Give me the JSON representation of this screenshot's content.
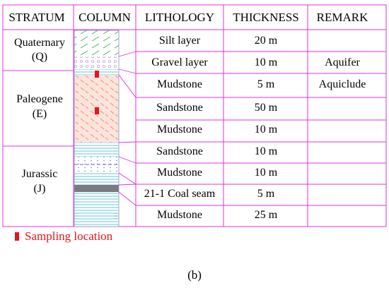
{
  "headers": [
    "STRATUM",
    "COLUMN",
    "LITHOLOGY",
    "THICKNESS",
    "REMARK"
  ],
  "strata": [
    {
      "name": "Quaternary",
      "code": "(Q)"
    },
    {
      "name": "Paleogene",
      "code": "(E)"
    },
    {
      "name": "Jurassic",
      "code": "(J)"
    }
  ],
  "layers": [
    {
      "lithology": "Silt layer",
      "thickness": "20 m",
      "remark": "",
      "pattern": "silt"
    },
    {
      "lithology": "Gravel layer",
      "thickness": "10 m",
      "remark": "Aquifer",
      "pattern": "gravel"
    },
    {
      "lithology": "Mudstone",
      "thickness": "5 m",
      "remark": "Aquiclude",
      "pattern": "mudstone"
    },
    {
      "lithology": "Sandstone",
      "thickness": "50 m",
      "remark": "",
      "pattern": "sandstone-red"
    },
    {
      "lithology": "Mudstone",
      "thickness": "10 m",
      "remark": "",
      "pattern": "mudstone"
    },
    {
      "lithology": "Sandstone",
      "thickness": "10 m",
      "remark": "",
      "pattern": "sandstone-dots"
    },
    {
      "lithology": "Mudstone",
      "thickness": "10 m",
      "remark": "",
      "pattern": "mudstone"
    },
    {
      "lithology": "21-1 Coal seam",
      "thickness": "5 m",
      "remark": "",
      "pattern": "coal"
    },
    {
      "lithology": "Mudstone",
      "thickness": "25 m",
      "remark": "",
      "pattern": "mudstone"
    }
  ],
  "legend": {
    "label": "Sampling location",
    "color": "#e8141b"
  },
  "caption": "(b)",
  "colors": {
    "grid": "#e030e0",
    "silt": "#39b54a",
    "gravel": "#c8a0e0",
    "mudstone": "#3fb8d8",
    "sandstone": "#f08a6a",
    "coal": "#7a7a82",
    "sample": "#e8141b"
  }
}
